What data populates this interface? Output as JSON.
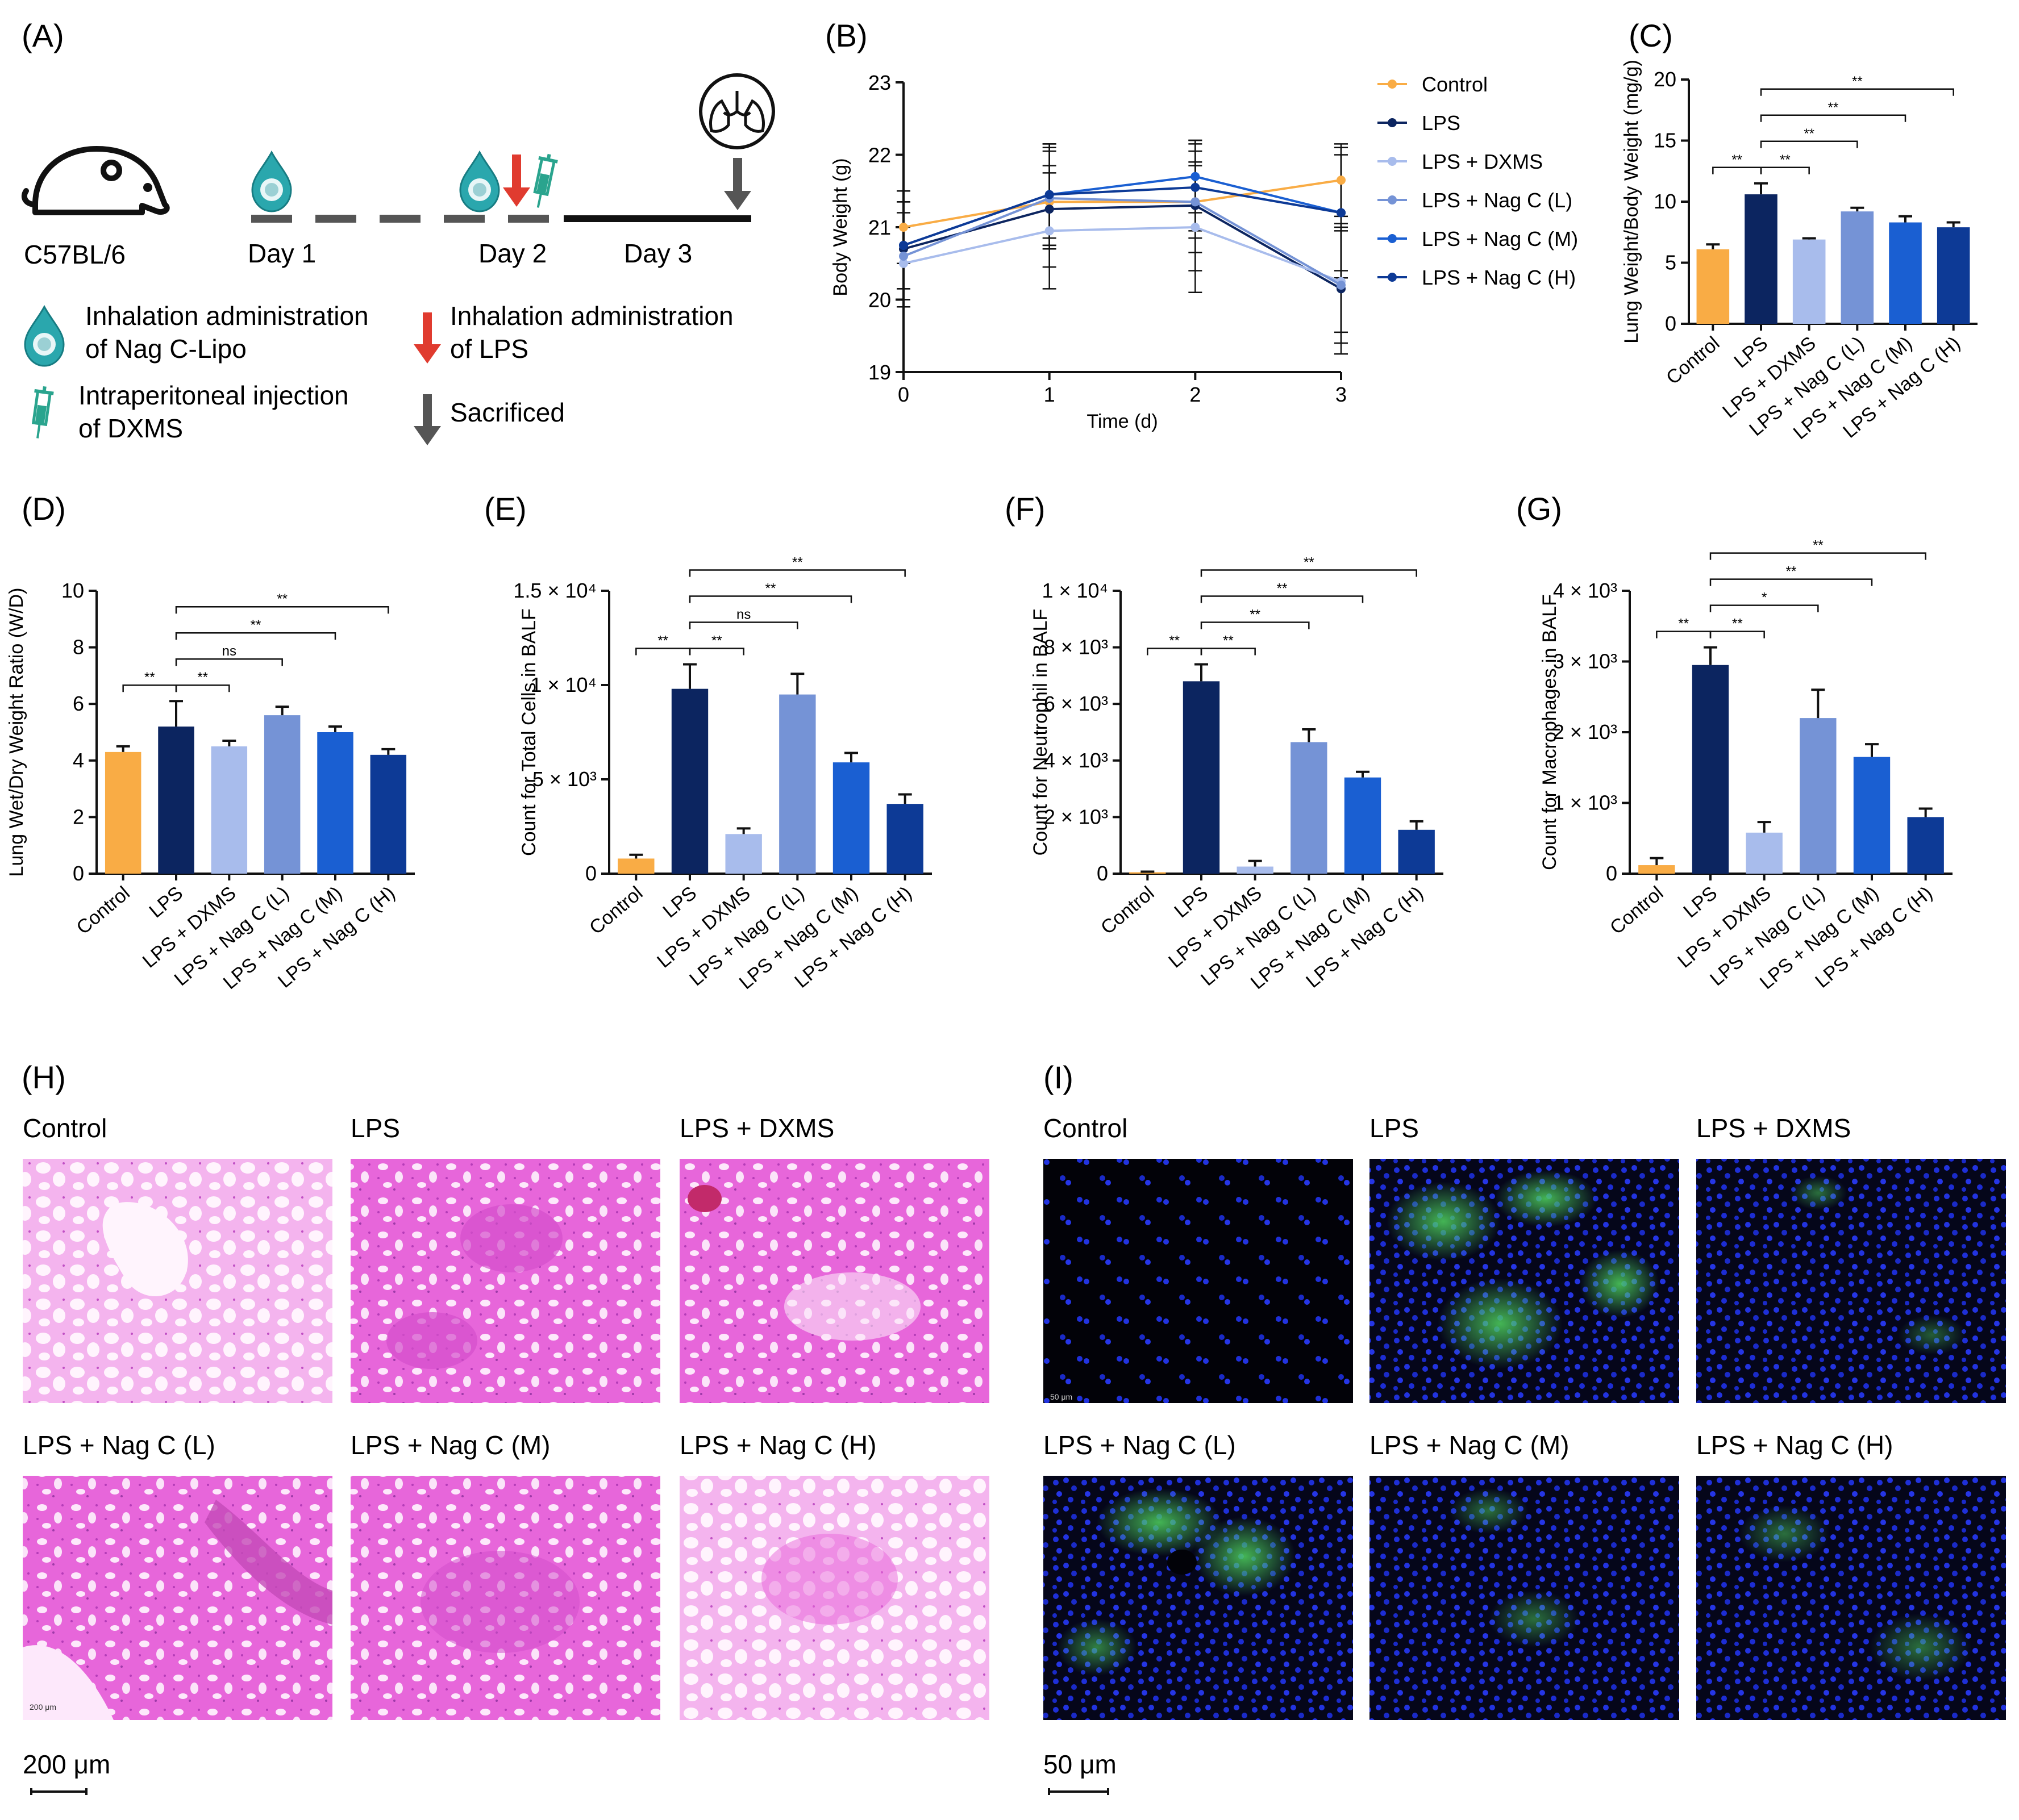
{
  "colors": {
    "control": "#f9ac45",
    "lps": "#0c2560",
    "lps_dxms": "#a8bcec",
    "nag_l": "#7593d6",
    "nag_m": "#1a5fd2",
    "nag_h": "#0d3a96",
    "he_stain": "#e266d8",
    "if_nuclei": "#1a2ad0",
    "if_green": "#37c24b",
    "arrow_red": "#e03b2f",
    "arrow_gray": "#555555",
    "drop_teal": "#1f9fa6"
  },
  "panel_a": {
    "letter": "(A)",
    "strain": "C57BL/6",
    "day1": "Day 1",
    "day2": "Day 2",
    "day3": "Day 3",
    "legend1_line1": "Inhalation administration",
    "legend1_line2": "of Nag C-Lipo",
    "legend2_line1": "Inhalation administration",
    "legend2_line2": "of LPS",
    "legend3_line1": "Intraperitoneal injection",
    "legend3_line2": "of DXMS",
    "legend4": "Sacrificed",
    "icons": [
      "mouse-icon",
      "drop-icon",
      "red-arrow-icon",
      "syringe-icon",
      "gray-arrow-icon",
      "lung-icon"
    ]
  },
  "chart_data": [
    {
      "id": "B",
      "letter": "(B)",
      "type": "line",
      "xlabel": "Time (d)",
      "ylabel": "Body Weight (g)",
      "x": [
        0,
        1,
        2,
        3
      ],
      "xlim": [
        0,
        3
      ],
      "ylim": [
        19,
        23
      ],
      "xticks": [
        "0",
        "1",
        "2",
        "3"
      ],
      "yticks": [
        "19",
        "20",
        "21",
        "22",
        "23"
      ],
      "series": [
        {
          "name": "Control",
          "color": "#f9ac45",
          "values": [
            21.0,
            21.35,
            21.35,
            21.65
          ],
          "err": [
            0.5,
            0.5,
            0.5,
            0.5
          ]
        },
        {
          "name": "LPS",
          "color": "#0c2560",
          "values": [
            20.7,
            21.25,
            21.3,
            20.15
          ],
          "err": [
            0.8,
            0.8,
            0.9,
            0.9
          ]
        },
        {
          "name": "LPS + DXMS",
          "color": "#a8bcec",
          "values": [
            20.5,
            20.95,
            21.0,
            20.25
          ],
          "err": [
            0.5,
            0.8,
            0.9,
            0.7
          ]
        },
        {
          "name": "LPS + Nag C (L)",
          "color": "#7593d6",
          "values": [
            20.6,
            21.4,
            21.35,
            20.2
          ],
          "err": [
            0.6,
            0.7,
            0.7,
            0.8
          ]
        },
        {
          "name": "LPS + Nag C (M)",
          "color": "#1a5fd2",
          "values": [
            20.75,
            21.45,
            21.7,
            21.2
          ],
          "err": [
            0.6,
            0.7,
            0.5,
            0.9
          ]
        },
        {
          "name": "LPS + Nag C (H)",
          "color": "#0d3a96",
          "values": [
            20.75,
            21.45,
            21.55,
            21.2
          ],
          "err": [
            0.6,
            0.7,
            0.6,
            0.8
          ]
        }
      ]
    },
    {
      "id": "C",
      "letter": "(C)",
      "type": "bar",
      "ylabel": "Lung Weight/Body Weight (mg/g)",
      "categories": [
        "Control",
        "LPS",
        "LPS + DXMS",
        "LPS + Nag C (L)",
        "LPS + Nag C (M)",
        "LPS + Nag C (H)"
      ],
      "values": [
        6.1,
        10.6,
        6.9,
        9.2,
        8.3,
        7.9
      ],
      "err": [
        0.4,
        0.9,
        0.1,
        0.3,
        0.5,
        0.4
      ],
      "ylim": [
        0,
        20
      ],
      "yticks": [
        "0",
        "5",
        "10",
        "15",
        "20"
      ],
      "ytick_values": [
        0,
        5,
        10,
        15,
        20
      ],
      "sig": [
        {
          "from": 0,
          "to": 1,
          "label": "**"
        },
        {
          "from": 1,
          "to": 2,
          "label": "**"
        },
        {
          "from": 1,
          "to": 3,
          "label": "**"
        },
        {
          "from": 1,
          "to": 4,
          "label": "**"
        },
        {
          "from": 1,
          "to": 5,
          "label": "**"
        }
      ]
    },
    {
      "id": "D",
      "letter": "(D)",
      "type": "bar",
      "ylabel": "Lung Wet/Dry Weight Ratio (W/D)",
      "categories": [
        "Control",
        "LPS",
        "LPS + DXMS",
        "LPS + Nag C (L)",
        "LPS + Nag C (M)",
        "LPS + Nag C (H)"
      ],
      "values": [
        4.3,
        5.2,
        4.5,
        5.6,
        5.0,
        4.2
      ],
      "err": [
        0.2,
        0.9,
        0.2,
        0.3,
        0.2,
        0.2
      ],
      "ylim": [
        0,
        10
      ],
      "yticks": [
        "0",
        "2",
        "4",
        "6",
        "8",
        "10"
      ],
      "ytick_values": [
        0,
        2,
        4,
        6,
        8,
        10
      ],
      "sig": [
        {
          "from": 0,
          "to": 1,
          "label": "**"
        },
        {
          "from": 1,
          "to": 2,
          "label": "**"
        },
        {
          "from": 1,
          "to": 3,
          "label": "ns"
        },
        {
          "from": 1,
          "to": 4,
          "label": "**"
        },
        {
          "from": 1,
          "to": 5,
          "label": "**"
        }
      ]
    },
    {
      "id": "E",
      "letter": "(E)",
      "type": "bar",
      "ylabel": "Count for Total Cells in BALF",
      "categories": [
        "Control",
        "LPS",
        "LPS + DXMS",
        "LPS + Nag C (L)",
        "LPS + Nag C (M)",
        "LPS + Nag C (H)"
      ],
      "values": [
        800,
        9800,
        2100,
        9500,
        5900,
        3700
      ],
      "err": [
        200,
        1300,
        300,
        1100,
        500,
        500
      ],
      "ylim": [
        0,
        15000
      ],
      "yticks": [
        "0",
        "5 × 10³",
        "1 × 10⁴",
        "1.5 × 10⁴"
      ],
      "ytick_values": [
        0,
        5000,
        10000,
        15000
      ],
      "sig": [
        {
          "from": 0,
          "to": 1,
          "label": "**"
        },
        {
          "from": 1,
          "to": 2,
          "label": "**"
        },
        {
          "from": 1,
          "to": 3,
          "label": "ns"
        },
        {
          "from": 1,
          "to": 4,
          "label": "**"
        },
        {
          "from": 1,
          "to": 5,
          "label": "**"
        }
      ]
    },
    {
      "id": "F",
      "letter": "(F)",
      "type": "bar",
      "ylabel": "Count for Neutrophil in BALF",
      "categories": [
        "Control",
        "LPS",
        "LPS + DXMS",
        "LPS + Nag C (L)",
        "LPS + Nag C (M)",
        "LPS + Nag C (H)"
      ],
      "values": [
        50,
        6800,
        250,
        4650,
        3400,
        1550
      ],
      "err": [
        20,
        600,
        200,
        450,
        200,
        300
      ],
      "ylim": [
        0,
        10000
      ],
      "yticks": [
        "0",
        "2 × 10³",
        "4 × 10³",
        "6 × 10³",
        "8 × 10³",
        "1 × 10⁴"
      ],
      "ytick_values": [
        0,
        2000,
        4000,
        6000,
        8000,
        10000
      ],
      "sig": [
        {
          "from": 0,
          "to": 1,
          "label": "**"
        },
        {
          "from": 1,
          "to": 2,
          "label": "**"
        },
        {
          "from": 1,
          "to": 3,
          "label": "**"
        },
        {
          "from": 1,
          "to": 4,
          "label": "**"
        },
        {
          "from": 1,
          "to": 5,
          "label": "**"
        }
      ]
    },
    {
      "id": "G",
      "letter": "(G)",
      "type": "bar",
      "ylabel": "Count for Macrophages in BALF",
      "categories": [
        "Control",
        "LPS",
        "LPS + DXMS",
        "LPS + Nag C (L)",
        "LPS + Nag C (M)",
        "LPS + Nag C (H)"
      ],
      "values": [
        120,
        2950,
        580,
        2200,
        1650,
        800
      ],
      "err": [
        100,
        250,
        150,
        400,
        180,
        120
      ],
      "ylim": [
        0,
        4000
      ],
      "yticks": [
        "0",
        "1 × 10³",
        "2 × 10³",
        "3 × 10³",
        "4 × 10³"
      ],
      "ytick_values": [
        0,
        1000,
        2000,
        3000,
        4000
      ],
      "sig": [
        {
          "from": 0,
          "to": 1,
          "label": "**"
        },
        {
          "from": 1,
          "to": 2,
          "label": "**"
        },
        {
          "from": 1,
          "to": 3,
          "label": "*"
        },
        {
          "from": 1,
          "to": 4,
          "label": "**"
        },
        {
          "from": 1,
          "to": 5,
          "label": "**"
        }
      ]
    }
  ],
  "panel_h": {
    "letter": "(H)",
    "labels": [
      "Control",
      "LPS",
      "LPS + DXMS",
      "LPS + Nag C (L)",
      "LPS + Nag C (M)",
      "LPS + Nag C (H)"
    ],
    "scale_bar": "200 μm",
    "inner_scale": "200 μm"
  },
  "panel_i": {
    "letter": "(I)",
    "labels": [
      "Control",
      "LPS",
      "LPS + DXMS",
      "LPS + Nag C (L)",
      "LPS + Nag C (M)",
      "LPS + Nag C (H)"
    ],
    "scale_bar": "50 μm",
    "inner_scale": "50 μm"
  }
}
